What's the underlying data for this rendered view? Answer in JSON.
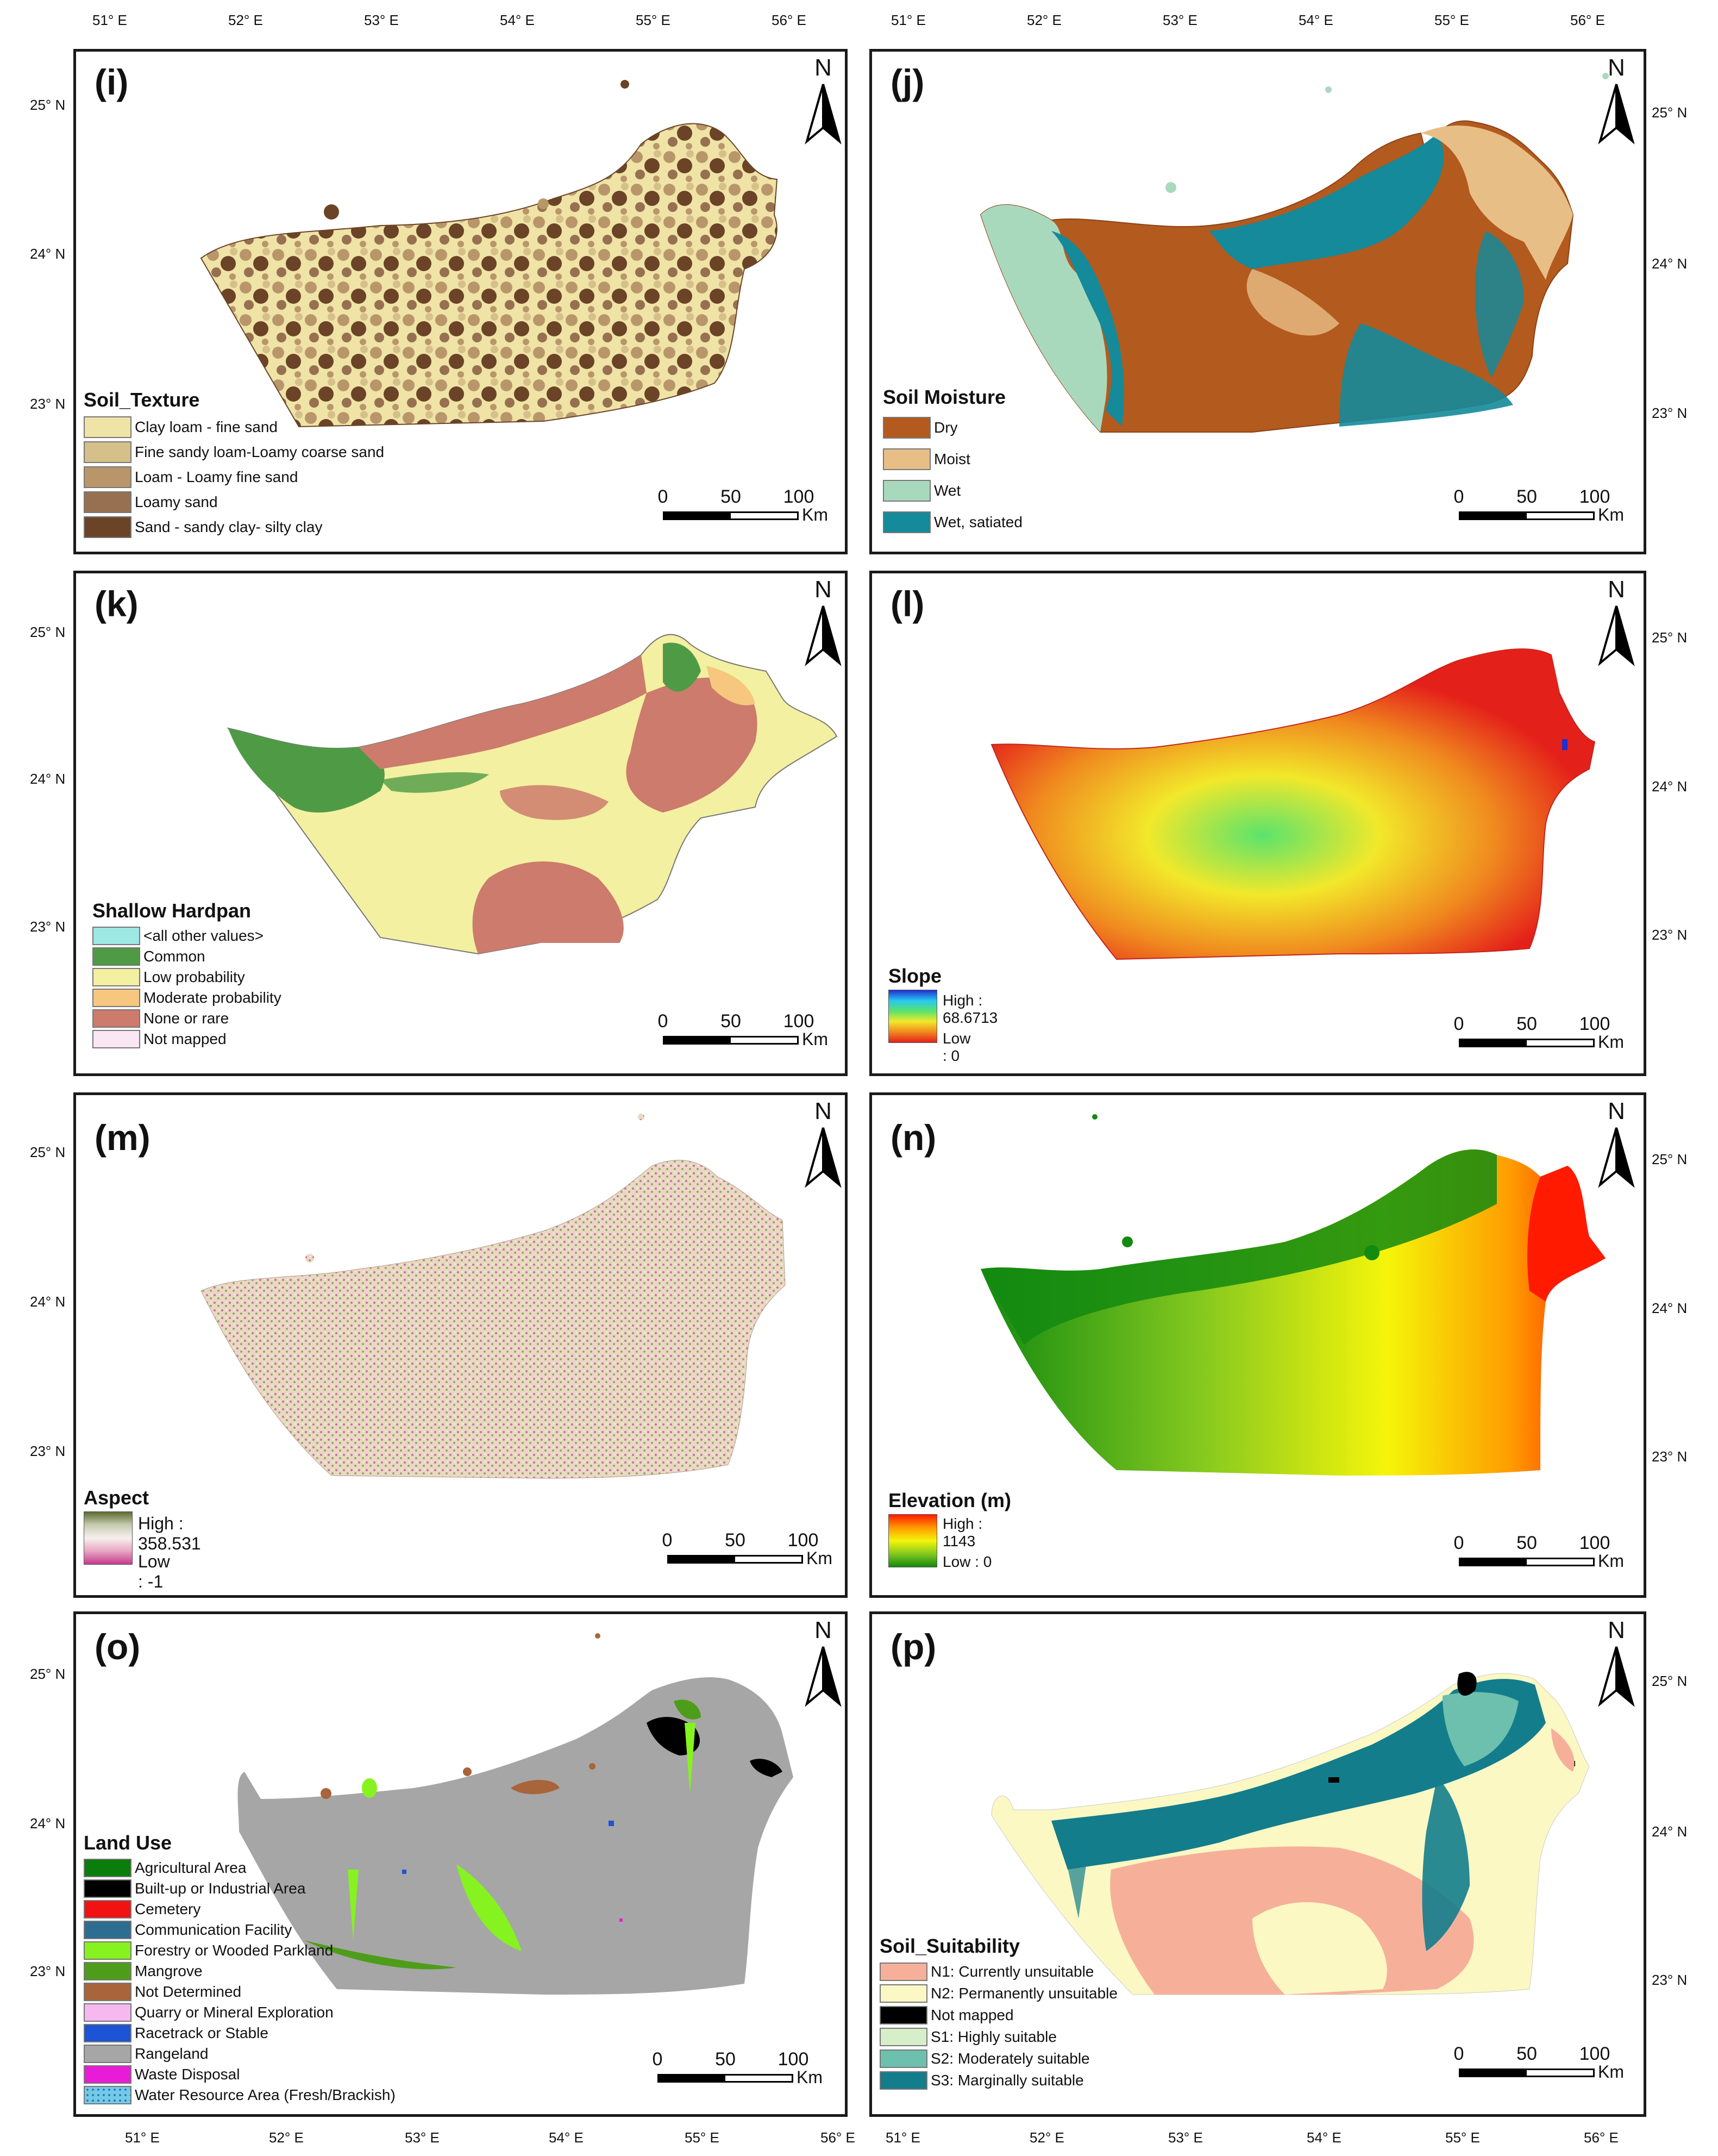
{
  "longitudes": [
    "51° E",
    "52° E",
    "53° E",
    "54° E",
    "55° E",
    "56° E"
  ],
  "latitudes": [
    "25° N",
    "24° N",
    "23° N"
  ],
  "north_label": "N",
  "scale": {
    "labels": [
      "0",
      "50",
      "100"
    ],
    "unit": "Km"
  },
  "panels": [
    {
      "id": "i",
      "label": "(i)",
      "legend_type": "categorical",
      "title": "Soil_Texture",
      "classes": [
        {
          "name": "Clay loam - fine sand",
          "color": "#efe3a6"
        },
        {
          "name": "Fine sandy loam-Loamy coarse sand",
          "color": "#d6c089"
        },
        {
          "name": "Loam -  Loamy fine sand",
          "color": "#b9966a"
        },
        {
          "name": "Loamy sand",
          "color": "#967050"
        },
        {
          "name": "Sand - sandy clay- silty clay",
          "color": "#6b4327"
        }
      ]
    },
    {
      "id": "j",
      "label": "(j)",
      "legend_type": "categorical",
      "title": "Soil Moisture",
      "classes": [
        {
          "name": "Dry",
          "color": "#b35a1e"
        },
        {
          "name": "Moist",
          "color": "#e8be87"
        },
        {
          "name": "Wet",
          "color": "#a9d9bd"
        },
        {
          "name": "Wet, satiated",
          "color": "#148a9a"
        }
      ]
    },
    {
      "id": "k",
      "label": "(k)",
      "legend_type": "categorical",
      "title": "Shallow Hardpan",
      "classes": [
        {
          "name": "<all other values>",
          "color": "#9ee8e3"
        },
        {
          "name": "Common",
          "color": "#4f9b45"
        },
        {
          "name": "Low probability",
          "color": "#f3f0a1"
        },
        {
          "name": "Moderate probability",
          "color": "#f7c77f"
        },
        {
          "name": "None or rare",
          "color": "#cc7b6c"
        },
        {
          "name": "Not mapped",
          "color": "#fbe7f3"
        }
      ]
    },
    {
      "id": "l",
      "label": "(l)",
      "legend_type": "ramp",
      "title": "Slope",
      "high": "High : 68.6713",
      "low": "Low : 0",
      "ramp_colors": [
        "#1f2fd0",
        "#27c9ef",
        "#5be36c",
        "#f2e82a",
        "#f08a1f",
        "#e4201a"
      ]
    },
    {
      "id": "m",
      "label": "(m)",
      "legend_type": "ramp",
      "title": "Aspect",
      "high": "High : 358.531",
      "low": "Low : -1",
      "ramp_colors": [
        "#5c6b2f",
        "#c7ccb0",
        "#f7f0ee",
        "#e7a6c4",
        "#c63a8c"
      ]
    },
    {
      "id": "n",
      "label": "(n)",
      "legend_type": "ramp",
      "title": "Elevation (m)",
      "high": "High : 1143",
      "low": "Low : 0",
      "ramp_colors": [
        "#ff1a00",
        "#ff9b00",
        "#f5f50a",
        "#84c81f",
        "#138a10"
      ]
    },
    {
      "id": "o",
      "label": "(o)",
      "legend_type": "categorical",
      "title": "Land Use",
      "classes": [
        {
          "name": "Agricultural Area",
          "color": "#0a7d0a"
        },
        {
          "name": "Built-up or Industrial Area",
          "color": "#000000"
        },
        {
          "name": "Cemetery",
          "color": "#f21212"
        },
        {
          "name": "Communication Facility",
          "color": "#2d6d8f"
        },
        {
          "name": "Forestry or Wooded Parkland",
          "color": "#86f21f"
        },
        {
          "name": "Mangrove",
          "color": "#4e9d1a"
        },
        {
          "name": "Not Determined",
          "color": "#a8643a"
        },
        {
          "name": "Quarry or Mineral Exploration",
          "color": "#f5b8ef"
        },
        {
          "name": "Racetrack or Stable",
          "color": "#1d54d6"
        },
        {
          "name": "Rangeland",
          "color": "#a6a6a6"
        },
        {
          "name": "Waste Disposal",
          "color": "#e81cd6"
        },
        {
          "name": "Water Resource Area (Fresh/Brackish)",
          "color": "#74c9ea"
        }
      ]
    },
    {
      "id": "p",
      "label": "(p)",
      "legend_type": "categorical",
      "title": "Soil_Suitability",
      "classes": [
        {
          "name": "N1: Currently unsuitable",
          "color": "#f6b09a"
        },
        {
          "name": "N2: Permanently unsuitable",
          "color": "#fbf8c4"
        },
        {
          "name": "Not mapped",
          "color": "#000000"
        },
        {
          "name": "S1: Highly suitable",
          "color": "#d7efc9"
        },
        {
          "name": "S2: Moderately suitable",
          "color": "#6cc0ad"
        },
        {
          "name": "S3: Marginally suitable",
          "color": "#137d8c"
        }
      ]
    }
  ]
}
